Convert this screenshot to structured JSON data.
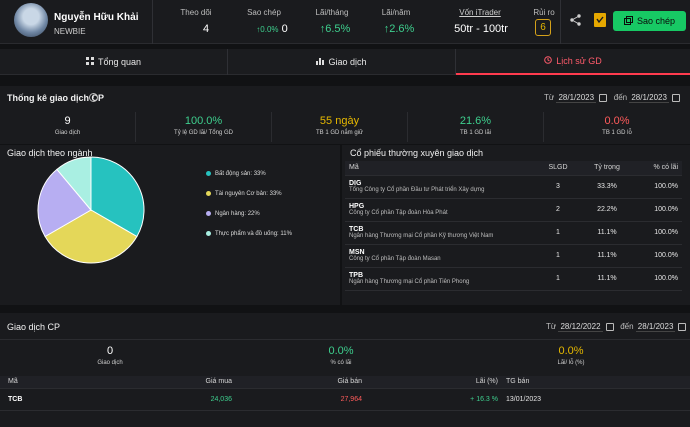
{
  "profile": {
    "name": "Nguyễn Hữu Khải",
    "rank": "NEWBIE"
  },
  "stats": [
    {
      "label": "Theo dõi",
      "value": "4"
    },
    {
      "label": "Sao chép",
      "value_prefix": "↑0.0%",
      "value": "0"
    },
    {
      "label": "Lãi/tháng",
      "value": "↑6.5%"
    },
    {
      "label": "Lãi/năm",
      "value": "↑2.6%"
    },
    {
      "label": "Vốn iTrader",
      "value": "50tr - 100tr"
    },
    {
      "label": "Rủi ro",
      "value": "6"
    }
  ],
  "actions": {
    "copy_label": "Sao chép"
  },
  "tabs": [
    {
      "label": "Tổng quan"
    },
    {
      "label": "Giao dịch"
    },
    {
      "label": "Lịch sử GD"
    }
  ],
  "stats_section": {
    "title": "Thống kê giao dịch CP",
    "from_label": "Từ",
    "from": "28/1/2023",
    "to_label": "đến",
    "to": "28/1/2023"
  },
  "metrics": [
    {
      "value": "9",
      "label": "Giao dịch"
    },
    {
      "value": "100.0%",
      "label": "Tỷ lệ GD lãi/ Tổng GD"
    },
    {
      "value": "55 ngày",
      "label": "TB 1 GD nắm giữ"
    },
    {
      "value": "21.6%",
      "label": "TB 1 GD lãi"
    },
    {
      "value": "0.0%",
      "label": "TB 1 GD lỗ"
    }
  ],
  "sector": {
    "title": "Giao dịch theo ngành",
    "chart_data": {
      "type": "pie",
      "title": "",
      "categories": [
        "Bất động sản",
        "Tài nguyên Cơ bản",
        "Ngân hàng",
        "Thực phẩm và đồ uống"
      ],
      "values": [
        33,
        33,
        22,
        11
      ],
      "colors": [
        "#26c2bf",
        "#e4d759",
        "#b7aef2",
        "#a9efe2"
      ]
    },
    "legend": [
      {
        "label": "Bất động sản: 33%"
      },
      {
        "label": "Tài nguyên Cơ bản: 33%"
      },
      {
        "label": "Ngân hàng: 22%"
      },
      {
        "label": "Thực phẩm và đồ uống: 11%"
      }
    ]
  },
  "frequent": {
    "title": "Cổ phiếu thường xuyên giao dịch",
    "columns": [
      "Mã",
      "SLGD",
      "Tỷ trọng",
      "% có lãi"
    ],
    "rows": [
      {
        "code": "DIG",
        "name": "Tổng Công ty Cổ phần Đầu tư Phát triển Xây dựng",
        "slgd": "3",
        "weight": "33.3%",
        "profit": "100.0%"
      },
      {
        "code": "HPG",
        "name": "Công ty Cổ phần Tập đoàn Hòa Phát",
        "slgd": "2",
        "weight": "22.2%",
        "profit": "100.0%"
      },
      {
        "code": "TCB",
        "name": "Ngân hàng Thương mại Cổ phần Kỹ thương Việt Nam",
        "slgd": "1",
        "weight": "11.1%",
        "profit": "100.0%"
      },
      {
        "code": "MSN",
        "name": "Công ty Cổ phần Tập đoàn Masan",
        "slgd": "1",
        "weight": "11.1%",
        "profit": "100.0%"
      },
      {
        "code": "TPB",
        "name": "Ngân hàng Thương mại Cổ phần Tiên Phong",
        "slgd": "1",
        "weight": "11.1%",
        "profit": "100.0%"
      }
    ]
  },
  "trades": {
    "title": "Giao dịch CP",
    "from_label": "Từ",
    "from": "28/12/2022",
    "to_label": "đến",
    "to": "28/1/2023",
    "summary": [
      {
        "value": "0",
        "label": "Giao dịch"
      },
      {
        "value": "0.0%",
        "label": "% có lãi"
      },
      {
        "value": "0.0%",
        "label": "Lãi/ lỗ (%)"
      }
    ],
    "columns": [
      "Mã",
      "Giá mua",
      "Giá bán",
      "Lãi (%)",
      "TG bán"
    ],
    "rows": [
      {
        "code": "TCB",
        "buy": "24,036",
        "sell": "27,964",
        "profit": "+ 16.3 %",
        "date": "13/01/2023"
      }
    ]
  },
  "colors": {
    "accent_green": "#3ecf8e",
    "accent_red": "#ff5b5b",
    "accent_yellow": "#e6b800",
    "copy_btn": "#17c964"
  }
}
